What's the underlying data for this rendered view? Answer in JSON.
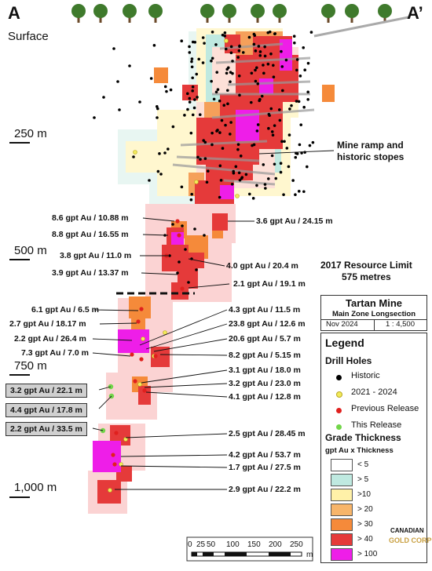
{
  "section": {
    "left_label": "A",
    "right_label": "A’",
    "surface_label": "Surface"
  },
  "depths": [
    "250 m",
    "500 m",
    "750 m",
    "1,000 m"
  ],
  "annotations": {
    "mine_ramp": [
      "Mine ramp and",
      "historic stopes"
    ],
    "resource_limit": [
      "2017 Resource Limit",
      "575 metres"
    ]
  },
  "intercepts_left": [
    "8.6 gpt Au / 10.88 m",
    "8.8 gpt Au / 16.55 m",
    "3.8 gpt Au / 11.0 m",
    "3.9 gpt Au / 13.37 m",
    "6.1 gpt Au / 6.5 m",
    "2.7 gpt Au / 18.17 m",
    "2.2 gpt Au / 26.4 m",
    "7.3 gpt Au / 7.0 m"
  ],
  "intercepts_right": [
    "3.6 gpt Au / 24.15 m",
    "4.0 gpt Au / 20.4 m",
    "2.1 gpt Au / 19.1 m",
    "4.3 gpt Au / 11.5 m",
    "23.8 gpt Au / 12.6 m",
    "20.6 gpt Au / 5.7 m",
    "8.2 gpt Au / 5.15 m",
    "3.1 gpt Au / 18.0 m",
    "3.2 gpt Au / 23.0 m",
    "4.1 gpt Au / 12.8 m",
    "2.5 gpt Au / 28.45 m",
    "4.2 gpt Au / 53.7 m",
    "1.7 gpt Au / 27.5 m",
    "2.9 gpt Au / 22.2 m"
  ],
  "this_release": [
    "3.2 gpt Au / 22.1 m",
    "4.4 gpt Au / 17.8 m",
    "2.2 gpt Au / 33.5 m"
  ],
  "title_block": {
    "mine": "Tartan Mine",
    "subtitle": "Main Zone Longsection",
    "date": "Nov 2024",
    "scale": "1 : 4,500"
  },
  "legend": {
    "title": "Legend",
    "drill_holes_title": "Drill Holes",
    "drill_holes": [
      {
        "label": "Historic",
        "color": "#000000"
      },
      {
        "label": "2021 - 2024",
        "color": "#f2ea5a"
      },
      {
        "label": "Previous Release",
        "color": "#e0201e"
      },
      {
        "label": "This Release",
        "color": "#72d64a"
      }
    ],
    "grade_title": "Grade Thickness",
    "grade_subtitle": "gpt Au x Thickness",
    "grade_bins": [
      {
        "label": "< 5",
        "color": "#ffffff"
      },
      {
        "label": "> 5",
        "color": "#bfe9e0"
      },
      {
        "label": ">10",
        "color": "#fff1a8"
      },
      {
        "label": "> 20",
        "color": "#f7b56a"
      },
      {
        "label": "> 30",
        "color": "#f58a3a"
      },
      {
        "label": "> 40",
        "color": "#e53a3a"
      },
      {
        "label": "> 100",
        "color": "#ee1ee8"
      }
    ]
  },
  "scale_bar": {
    "ticks": [
      "0",
      "25",
      "50",
      "100",
      "150",
      "200",
      "250"
    ],
    "unit": "m"
  },
  "logo": {
    "line1": "CANADIAN",
    "line2": "GOLD CORP"
  },
  "colors": {
    "grade_pink": "#fbd3d3",
    "grade_cyan": "#bfe9e0",
    "grade_yellow": "#fff1a8",
    "grade_orange": "#f58a3a",
    "grade_red": "#e53a3a",
    "grade_magenta": "#ee1ee8",
    "tree_green": "#3f7a2c",
    "logo_gold": "#c9a041"
  }
}
